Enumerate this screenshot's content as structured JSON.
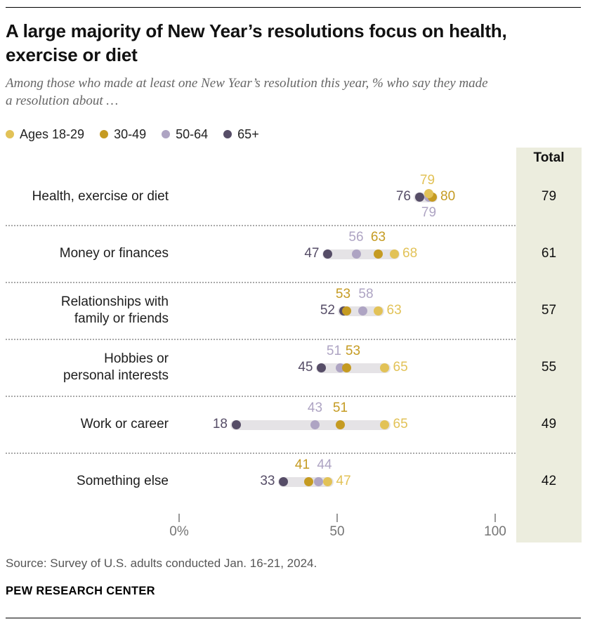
{
  "header": {
    "title": "A large majority of New Year’s resolutions focus on health, exercise or diet",
    "subtitle": "Among those who made at least one New Year’s resolution this year, % who say they made a resolution about …"
  },
  "legend": [
    {
      "label": "Ages 18-29",
      "color": "#E2C257"
    },
    {
      "label": "30-49",
      "color": "#C59B22"
    },
    {
      "label": "50-64",
      "color": "#AEA4C3"
    },
    {
      "label": "65+",
      "color": "#564D67"
    }
  ],
  "chart_data": {
    "type": "scatter",
    "subtype": "dot-plot",
    "title": "A large majority of New Year’s resolutions focus on health, exercise or diet",
    "xlim": [
      0,
      100
    ],
    "x_tick_values": [
      0,
      50,
      100
    ],
    "x_tick_labels": [
      "0%",
      "50",
      "100"
    ],
    "total_header": "Total",
    "series_names": [
      "Ages 18-29",
      "30-49",
      "50-64",
      "65+"
    ],
    "rows": [
      {
        "label": "Health, exercise or diet",
        "total": 79,
        "points": [
          {
            "group": 3,
            "value": 76,
            "label_pos": "left"
          },
          {
            "group": 2,
            "value": 79,
            "label_pos": "below"
          },
          {
            "group": 1,
            "value": 80,
            "label_pos": "right"
          },
          {
            "group": 0,
            "value": 79,
            "label_pos": "above",
            "dy": -5,
            "dx": -2
          }
        ]
      },
      {
        "label": "Money or finances",
        "total": 61,
        "points": [
          {
            "group": 3,
            "value": 47,
            "label_pos": "left"
          },
          {
            "group": 2,
            "value": 56,
            "label_pos": "above"
          },
          {
            "group": 1,
            "value": 63,
            "label_pos": "above"
          },
          {
            "group": 0,
            "value": 68,
            "label_pos": "right"
          }
        ]
      },
      {
        "label": "Relationships with\nfamily or friends",
        "total": 57,
        "points": [
          {
            "group": 3,
            "value": 52,
            "label_pos": "left"
          },
          {
            "group": 2,
            "value": 58,
            "label_pos": "above",
            "dx": 5
          },
          {
            "group": 1,
            "value": 53,
            "label_pos": "above",
            "dx": -5
          },
          {
            "group": 0,
            "value": 63,
            "label_pos": "right"
          }
        ]
      },
      {
        "label": "Hobbies or\npersonal interests",
        "total": 55,
        "points": [
          {
            "group": 3,
            "value": 45,
            "label_pos": "left"
          },
          {
            "group": 2,
            "value": 51,
            "label_pos": "above",
            "dx": -9
          },
          {
            "group": 1,
            "value": 53,
            "label_pos": "above",
            "dx": 9
          },
          {
            "group": 0,
            "value": 65,
            "label_pos": "right"
          }
        ]
      },
      {
        "label": "Work or career",
        "total": 49,
        "points": [
          {
            "group": 3,
            "value": 18,
            "label_pos": "left"
          },
          {
            "group": 2,
            "value": 43,
            "label_pos": "above"
          },
          {
            "group": 1,
            "value": 51,
            "label_pos": "above"
          },
          {
            "group": 0,
            "value": 65,
            "label_pos": "right"
          }
        ]
      },
      {
        "label": "Something else",
        "total": 42,
        "points": [
          {
            "group": 3,
            "value": 33,
            "label_pos": "left"
          },
          {
            "group": 1,
            "value": 41,
            "label_pos": "above",
            "dx": -9
          },
          {
            "group": 2,
            "value": 44,
            "label_pos": "above",
            "dx": 9
          },
          {
            "group": 0,
            "value": 47,
            "label_pos": "right"
          }
        ]
      }
    ],
    "styles": {
      "total_bg": "#ECEDDE",
      "bar_color": "#E5E3E6",
      "tick_color": "#999999",
      "tick_label_color": "#757575",
      "separator_color": "#A9A9A9"
    }
  },
  "footer": {
    "source": "Source: Survey of U.S. adults conducted Jan. 16-21, 2024.",
    "brand": "PEW RESEARCH CENTER"
  }
}
